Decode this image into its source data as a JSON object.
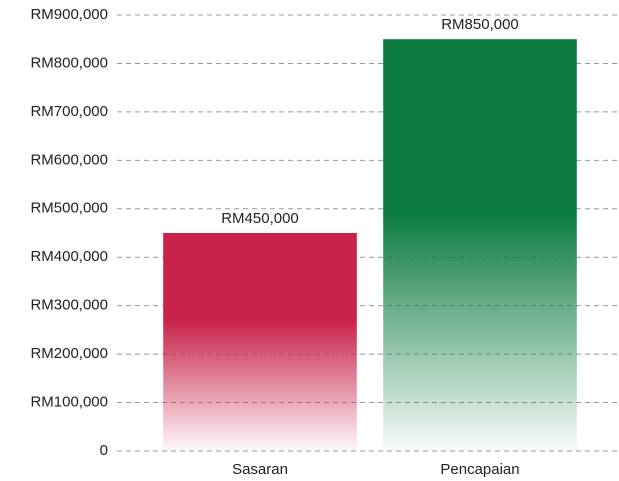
{
  "chart_data": {
    "type": "bar",
    "categories": [
      "Sasaran",
      "Pencapaian"
    ],
    "values": [
      450000,
      850000
    ],
    "value_labels": [
      "RM450,000",
      "RM850,000"
    ],
    "colors": [
      "#c8234a",
      "#0b7a3f"
    ],
    "ylim": [
      0,
      900000
    ],
    "yticks": [
      0,
      {
        "value": 100000,
        "label": "RM100,000"
      },
      {
        "value": 200000,
        "label": "RM200,000"
      },
      {
        "value": 300000,
        "label": "RM300,000"
      },
      {
        "value": 400000,
        "label": "RM400,000"
      },
      {
        "value": 500000,
        "label": "RM500,000"
      },
      {
        "value": 600000,
        "label": "RM600,000"
      },
      {
        "value": 700000,
        "label": "RM700,000"
      },
      {
        "value": 800000,
        "label": "RM800,000"
      },
      {
        "value": 900000,
        "label": "RM900,000"
      }
    ],
    "grid": true
  }
}
